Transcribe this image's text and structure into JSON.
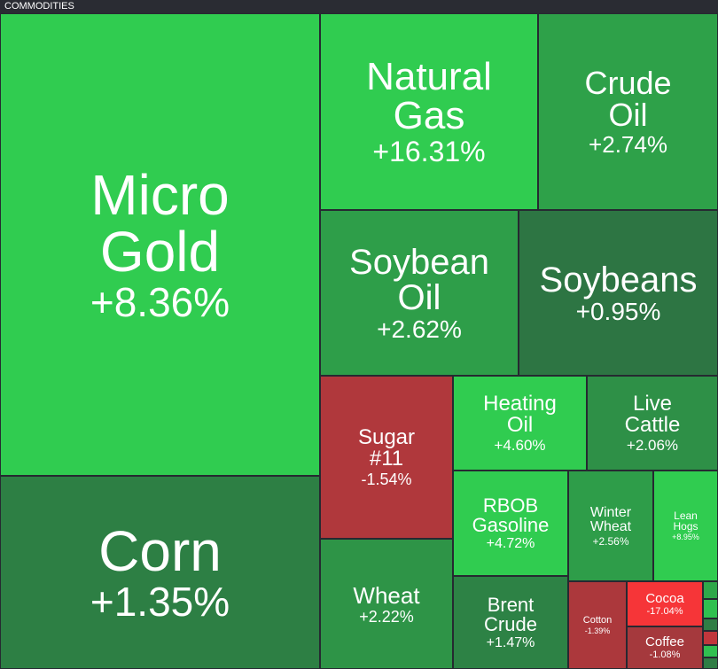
{
  "chart_data": {
    "type": "treemap",
    "title": "COMMODITIES",
    "categories": [
      "Micro Gold",
      "Corn",
      "Natural Gas",
      "Crude Oil",
      "Soybean Oil",
      "Soybeans",
      "Sugar #11",
      "Heating Oil",
      "Live Cattle",
      "RBOB Gasoline",
      "Winter Wheat",
      "Lean Hogs",
      "Wheat",
      "Brent Crude",
      "Cotton",
      "Cocoa",
      "Coffee"
    ],
    "values": [
      8.36,
      1.35,
      16.31,
      2.74,
      2.62,
      0.95,
      -1.54,
      4.6,
      2.06,
      4.72,
      2.56,
      8.95,
      2.22,
      1.47,
      -1.39,
      -17.04,
      -1.08
    ],
    "value_labels": [
      "+8.36%",
      "+1.35%",
      "+16.31%",
      "+2.74%",
      "+2.62%",
      "+0.95%",
      "-1.54%",
      "+4.60%",
      "+2.06%",
      "+4.72%",
      "+2.56%",
      "+8.95%",
      "+2.22%",
      "+1.47%",
      "-1.39%",
      "-17.04%",
      "-1.08%"
    ]
  }
}
